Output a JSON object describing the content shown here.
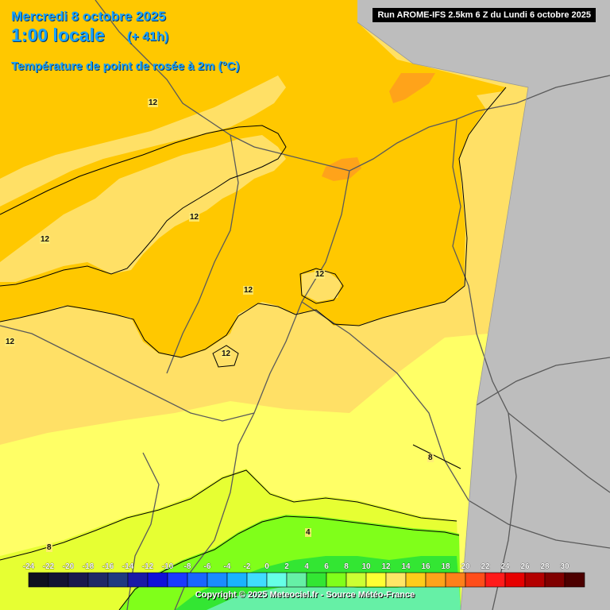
{
  "header": {
    "date": "Mercredi 8 octobre 2025",
    "time": "1:00 locale",
    "lead": "(+ 41h)",
    "parameter": "Température de point de rosée à 2m (°C)"
  },
  "run_info": "Run AROME-IFS 2.5km 6 Z du Lundi 6 octobre 2025",
  "credit": "Copyright © 2025 Meteociel.fr - Source Météo-France",
  "contour_labels": [
    "12",
    "12",
    "12",
    "12",
    "12",
    "12",
    "12",
    "8",
    "8",
    "4"
  ],
  "legend": {
    "labels": [
      "-24",
      "-22",
      "-20",
      "-18",
      "-16",
      "-14",
      "-12",
      "-10",
      "-8",
      "-6",
      "-4",
      "-2",
      "0",
      "2",
      "4",
      "6",
      "8",
      "10",
      "12",
      "14",
      "16",
      "18",
      "20",
      "22",
      "24",
      "26",
      "28",
      "30"
    ],
    "colors": [
      "#10101f",
      "#141433",
      "#1a1a4d",
      "#1f2a66",
      "#1f3a80",
      "#1a1aa6",
      "#1010d9",
      "#1a3aff",
      "#1a66ff",
      "#1a8cff",
      "#1ab3ff",
      "#40ddff",
      "#66ffe6",
      "#66f0a6",
      "#33e633",
      "#80ff1a",
      "#ccff33",
      "#ffff33",
      "#ffe666",
      "#ffcc1a",
      "#ffa31a",
      "#ff801a",
      "#ff4d1a",
      "#ff1a1a",
      "#e60000",
      "#b30000",
      "#800000",
      "#4d0000"
    ]
  },
  "colors": {
    "outside": "#bdbdbd",
    "band_12_14": "#ffc800",
    "band_10_12": "#ffe066",
    "band_8_10": "#ffff66",
    "band_6_8": "#e6ff33",
    "band_4_6": "#80ff1a",
    "band_2_4": "#33e633",
    "band_14_16": "#ffa31a"
  }
}
